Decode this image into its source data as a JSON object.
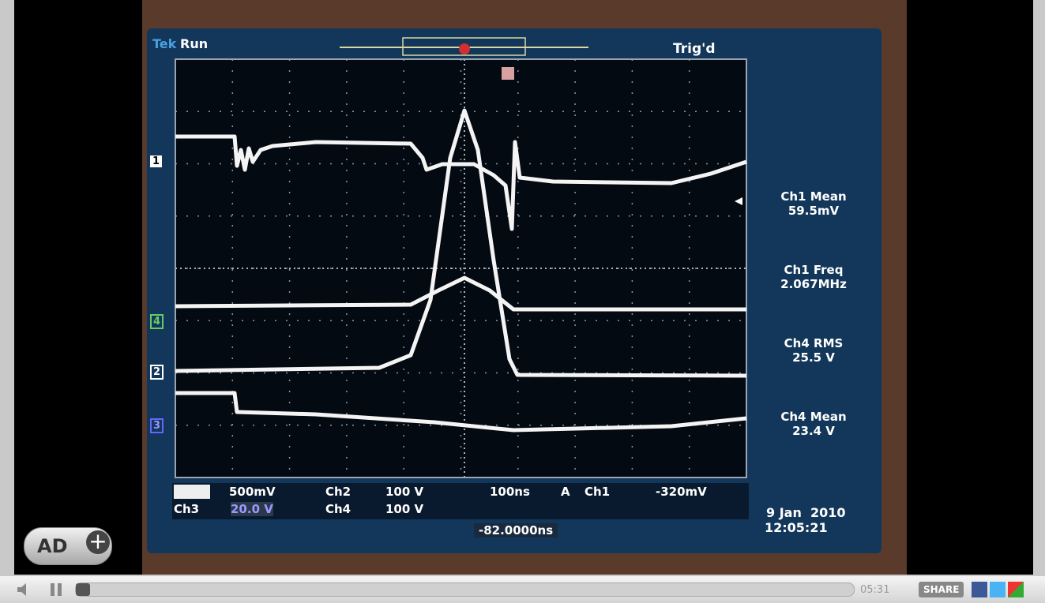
{
  "scope": {
    "brand": "Tek",
    "state": "Run",
    "trigger_status": "Trig'd",
    "channel_markers": [
      "1",
      "4",
      "2",
      "3"
    ],
    "measurements": [
      {
        "name": "Ch1 Mean",
        "value": "59.5mV"
      },
      {
        "name": "Ch1 Freq",
        "value": "2.067MHz"
      },
      {
        "name": "Ch4 RMS",
        "value": "25.5 V"
      },
      {
        "name": "Ch4 Mean",
        "value": "23.4 V"
      }
    ],
    "settings_row1": [
      "500mV",
      "Ch2",
      "100 V",
      "100ns",
      "A",
      "Ch1",
      "-320mV"
    ],
    "settings_row2": [
      "Ch3",
      "20.0 V",
      "Ch4",
      "100 V"
    ],
    "trigger_position": "-82.0000ns",
    "date": "9 Jan  2010",
    "time": "12:05:21"
  },
  "player": {
    "ad_button": "AD",
    "time": "05:31",
    "share": "SHARE"
  }
}
